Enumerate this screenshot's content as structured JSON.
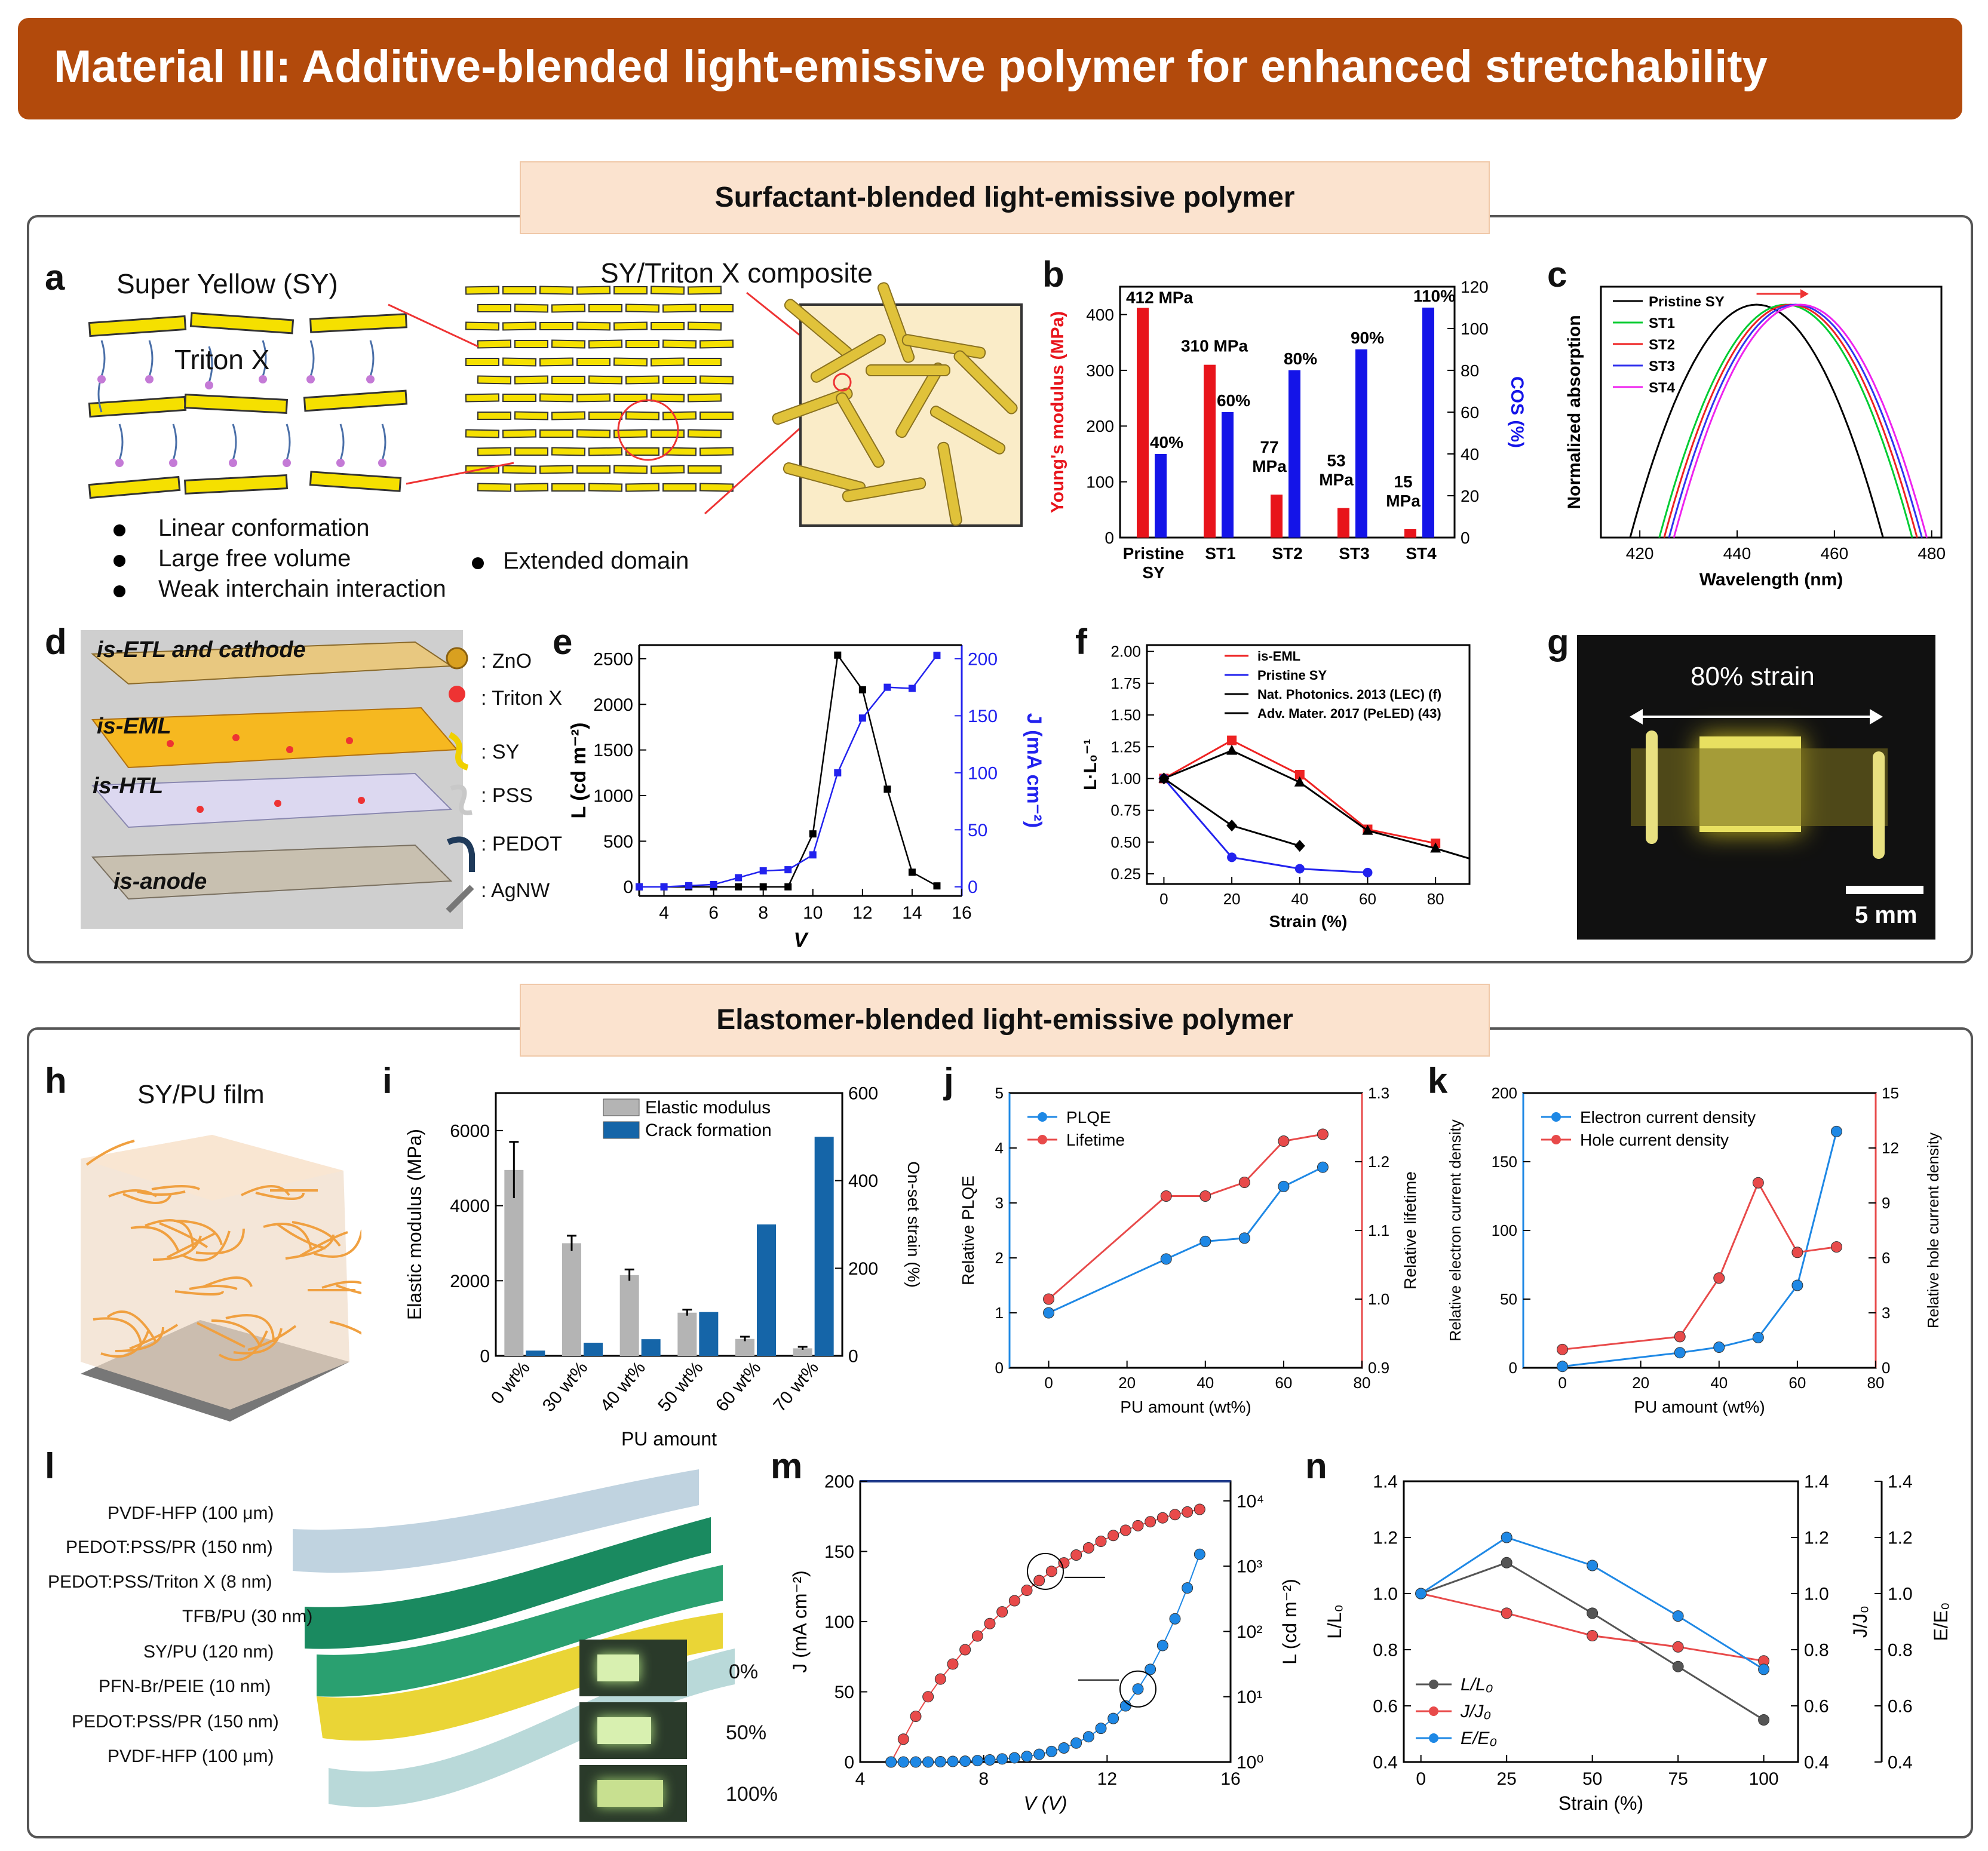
{
  "title": "Material III: Additive-blended light-emissive polymer for enhanced stretchability",
  "sections": {
    "top": "Surfactant-blended light-emissive polymer",
    "bottom": "Elastomer-blended light-emissive polymer"
  },
  "panel_labels": [
    "a",
    "b",
    "c",
    "d",
    "e",
    "f",
    "g",
    "h",
    "i",
    "j",
    "k",
    "l",
    "m",
    "n"
  ],
  "panel_a": {
    "sy_label": "Super Yellow (SY)",
    "triton_label": "Triton X",
    "composite_label": "SY/Triton X composite",
    "bullets": [
      "Linear conformation",
      "Large free volume",
      "Weak interchain interaction"
    ],
    "extended": "Extended domain"
  },
  "panel_d": {
    "layers": [
      "is-ETL and cathode",
      "is-EML",
      "is-HTL",
      "is-anode"
    ],
    "legend": [
      ": ZnO",
      ": Triton X",
      ": SY",
      ": PSS",
      ": PEDOT",
      ": AgNW"
    ]
  },
  "panel_g": {
    "strain": "80% strain",
    "scale": "5 mm"
  },
  "panel_h": {
    "label": "SY/PU film"
  },
  "panel_l": {
    "layers": [
      "PVDF-HFP (100 μm)",
      "PEDOT:PSS/PR (150 nm)",
      "PEDOT:PSS/Triton X (8 nm)",
      "TFB/PU (30 nm)",
      "SY/PU (120 nm)",
      "PFN-Br/PEIE (10 nm)",
      "PEDOT:PSS/PR (150 nm)",
      "PVDF-HFP (100 μm)"
    ],
    "strains": [
      "0%",
      "50%",
      "100%"
    ]
  },
  "chart_data": [
    {
      "panel": "b",
      "type": "bar",
      "categories": [
        "Pristine SY",
        "ST1",
        "ST2",
        "ST3",
        "ST4"
      ],
      "series": [
        {
          "name": "Young's modulus (MPa)",
          "values": [
            412,
            310,
            77,
            53,
            15
          ],
          "color": "#e8141b"
        },
        {
          "name": "COS (%)",
          "values": [
            40,
            60,
            80,
            90,
            110
          ],
          "color": "#1414e8"
        }
      ],
      "bar_labels_left": [
        "412 MPa",
        "310 MPa",
        "77 MPa",
        "53 MPa",
        "15 MPa"
      ],
      "bar_labels_right": [
        "40%",
        "60%",
        "80%",
        "90%",
        "110%"
      ],
      "ylabel": "Young's modulus (MPa)",
      "y2label": "COS (%)",
      "ylim": [
        0,
        450
      ],
      "y2lim": [
        0,
        120
      ],
      "yticks": [
        "0",
        "100",
        "200",
        "300",
        "400"
      ],
      "y2ticks": [
        "0",
        "20",
        "40",
        "60",
        "80",
        "100",
        "120"
      ]
    },
    {
      "panel": "c",
      "type": "line",
      "xlabel": "Wavelength (nm)",
      "ylabel": "Normalized absorption",
      "xlim": [
        412,
        482
      ],
      "xticks": [
        "420",
        "440",
        "460",
        "480"
      ],
      "series": [
        {
          "name": "Pristine SY",
          "peak": 444,
          "color": "#000000"
        },
        {
          "name": "ST1",
          "peak": 450,
          "color": "#00cc33"
        },
        {
          "name": "ST2",
          "peak": 451,
          "color": "#ee2222"
        },
        {
          "name": "ST3",
          "peak": 452,
          "color": "#3333ee"
        },
        {
          "name": "ST4",
          "peak": 453,
          "color": "#ee22ee"
        }
      ]
    },
    {
      "panel": "e",
      "type": "line",
      "xlabel": "V",
      "ylabel": "L (cd m⁻²)",
      "y2label": "J (mA cm⁻²)",
      "xlim": [
        3,
        16
      ],
      "ylim": [
        -100,
        2650
      ],
      "y2lim": [
        -8,
        212
      ],
      "xticks": [
        "4",
        "6",
        "8",
        "10",
        "12",
        "14",
        "16"
      ],
      "yticks": [
        "0",
        "500",
        "1000",
        "1500",
        "2000",
        "2500"
      ],
      "y2ticks": [
        "0",
        "50",
        "100",
        "150",
        "200"
      ],
      "x": [
        3,
        4,
        5,
        6,
        7,
        8,
        9,
        10,
        11,
        12,
        13,
        14,
        15
      ],
      "series": [
        {
          "name": "L",
          "axis": "left",
          "color": "#000000",
          "values": [
            0,
            0,
            0,
            0,
            0,
            0,
            0,
            580,
            2540,
            2160,
            1070,
            160,
            10
          ]
        },
        {
          "name": "J",
          "axis": "right",
          "color": "#2222ee",
          "values": [
            0,
            0,
            1,
            2,
            8,
            14,
            15,
            28,
            100,
            148,
            175,
            174,
            203
          ]
        }
      ]
    },
    {
      "panel": "f",
      "type": "line",
      "xlabel": "Strain (%)",
      "ylabel": "L·L₀⁻¹",
      "xlim": [
        -5,
        90
      ],
      "ylim": [
        0.17,
        2.05
      ],
      "xticks": [
        "0",
        "20",
        "40",
        "60",
        "80"
      ],
      "yticks": [
        "0.25",
        "0.50",
        "0.75",
        "1.00",
        "1.25",
        "1.50",
        "1.75",
        "2.00"
      ],
      "series": [
        {
          "name": "is-EML",
          "color": "#ee2222",
          "x": [
            0,
            20,
            40,
            60,
            80
          ],
          "values": [
            1.0,
            1.3,
            1.03,
            0.6,
            0.49
          ]
        },
        {
          "name": "Pristine SY",
          "color": "#2222ee",
          "x": [
            0,
            20,
            40,
            60
          ],
          "values": [
            1.0,
            0.38,
            0.29,
            0.26
          ]
        },
        {
          "name": "Nat. Photonics. 2013 (LEC) (f)",
          "color": "#000000",
          "x": [
            0,
            20,
            40,
            60,
            80,
            90
          ],
          "values": [
            1.0,
            1.22,
            0.97,
            0.59,
            0.45,
            0.37
          ]
        },
        {
          "name": "Adv. Mater. 2017 (PeLED) (43)",
          "color": "#000000",
          "x": [
            0,
            20,
            40
          ],
          "values": [
            1.0,
            0.63,
            0.47
          ]
        }
      ]
    },
    {
      "panel": "i",
      "type": "bar",
      "categories": [
        "0 wt%",
        "30 wt%",
        "40 wt%",
        "50 wt%",
        "60 wt%",
        "70 wt%"
      ],
      "xlabel": "PU amount",
      "ylabel": "Elastic modulus (MPa)",
      "y2label": "On-set strain (%)",
      "ylim": [
        0,
        7000
      ],
      "y2lim": [
        0,
        600
      ],
      "yticks": [
        "0",
        "2000",
        "4000",
        "6000"
      ],
      "y2ticks": [
        "0",
        "200",
        "400",
        "600"
      ],
      "series": [
        {
          "name": "Elastic modulus",
          "color": "#b4b4b4",
          "values": [
            4950,
            3000,
            2150,
            1150,
            450,
            200
          ],
          "errors": [
            750,
            200,
            150,
            80,
            60,
            40
          ]
        },
        {
          "name": "Crack formation",
          "color": "#1565a8",
          "values": [
            12,
            30,
            38,
            100,
            300,
            500
          ]
        }
      ]
    },
    {
      "panel": "j",
      "type": "line",
      "xlabel": "PU amount (wt%)",
      "ylabel": "Relative PLQE",
      "y2label": "Relative lifetime",
      "xlim": [
        -10,
        80
      ],
      "ylim": [
        0,
        5
      ],
      "y2lim": [
        0.9,
        1.3
      ],
      "xticks": [
        "0",
        "20",
        "40",
        "60",
        "80"
      ],
      "yticks": [
        "0",
        "1",
        "2",
        "3",
        "4",
        "5"
      ],
      "y2ticks": [
        "0.9",
        "1.0",
        "1.1",
        "1.2",
        "1.3"
      ],
      "x": [
        0,
        30,
        40,
        50,
        60,
        70
      ],
      "series": [
        {
          "name": "PLQE",
          "axis": "left",
          "color": "#1e88e5",
          "values": [
            1.0,
            1.98,
            2.3,
            2.36,
            3.3,
            3.65
          ]
        },
        {
          "name": "Lifetime",
          "axis": "right",
          "color": "#e84a4a",
          "values": [
            1.0,
            1.15,
            1.15,
            1.17,
            1.23,
            1.24
          ]
        }
      ]
    },
    {
      "panel": "k",
      "type": "line",
      "xlabel": "PU amount (wt%)",
      "ylabel": "Relative electron current density",
      "y2label": "Relative hole current density",
      "xlim": [
        -10,
        80
      ],
      "ylim": [
        0,
        200
      ],
      "y2lim": [
        0,
        15
      ],
      "xticks": [
        "0",
        "20",
        "40",
        "60",
        "80"
      ],
      "yticks": [
        "0",
        "50",
        "100",
        "150",
        "200"
      ],
      "y2ticks": [
        "0",
        "3",
        "6",
        "9",
        "12",
        "15"
      ],
      "x": [
        0,
        30,
        40,
        50,
        60,
        70
      ],
      "series": [
        {
          "name": "Electron current density",
          "axis": "left",
          "color": "#1e88e5",
          "values": [
            1,
            11,
            15,
            22,
            60,
            172
          ]
        },
        {
          "name": "Hole current density",
          "axis": "right",
          "color": "#e84a4a",
          "values": [
            1.0,
            1.7,
            4.9,
            10.1,
            6.3,
            6.6
          ]
        }
      ]
    },
    {
      "panel": "m",
      "type": "scatter",
      "xlabel": "V (V)",
      "ylabel": "J (mA cm⁻²)",
      "y2label": "L (cd m⁻²)",
      "xlim": [
        4,
        16
      ],
      "ylim": [
        0,
        200
      ],
      "y2lim_log": [
        0,
        4.3
      ],
      "xticks": [
        "4",
        "8",
        "12",
        "16"
      ],
      "yticks": [
        "0",
        "50",
        "100",
        "150",
        "200"
      ],
      "y2ticks": [
        "10⁰",
        "10¹",
        "10²",
        "10³",
        "10⁴"
      ],
      "series": [
        {
          "name": "L",
          "axis": "right",
          "color": "#e84a4a",
          "x": [
            5.0,
            5.4,
            5.8,
            6.2,
            6.6,
            7.0,
            7.4,
            7.8,
            8.2,
            8.6,
            9.0,
            9.4,
            9.8,
            10.2,
            10.6,
            11.0,
            11.4,
            11.8,
            12.2,
            12.6,
            13.0,
            13.4,
            13.8,
            14.2,
            14.6,
            15.0
          ],
          "log_values": [
            0.0,
            0.35,
            0.7,
            1.0,
            1.27,
            1.5,
            1.72,
            1.93,
            2.12,
            2.3,
            2.47,
            2.63,
            2.78,
            2.92,
            3.05,
            3.17,
            3.28,
            3.38,
            3.47,
            3.55,
            3.62,
            3.68,
            3.74,
            3.79,
            3.83,
            3.87
          ]
        },
        {
          "name": "J",
          "axis": "left",
          "color": "#1e88e5",
          "x": [
            5.0,
            5.4,
            5.8,
            6.2,
            6.6,
            7.0,
            7.4,
            7.8,
            8.2,
            8.6,
            9.0,
            9.4,
            9.8,
            10.2,
            10.6,
            11.0,
            11.4,
            11.8,
            12.2,
            12.6,
            13.0,
            13.4,
            13.8,
            14.2,
            14.6,
            15.0
          ],
          "values": [
            0,
            0,
            0,
            0,
            0.2,
            0.4,
            0.6,
            1,
            1.5,
            2.2,
            3,
            4,
            5.5,
            7.5,
            10,
            13.5,
            18,
            24,
            31,
            40,
            52,
            66,
            83,
            102,
            124,
            148
          ]
        }
      ]
    },
    {
      "panel": "n",
      "type": "line",
      "xlabel": "Strain (%)",
      "ylabel": "L/L₀",
      "y2label": "J/J₀",
      "y3label": "E/E₀",
      "xlim": [
        -5,
        110
      ],
      "ylim": [
        0.4,
        1.4
      ],
      "xticks": [
        "0",
        "25",
        "50",
        "75",
        "100"
      ],
      "yticks": [
        "0.4",
        "0.6",
        "0.8",
        "1.0",
        "1.2",
        "1.4"
      ],
      "x": [
        0,
        25,
        50,
        75,
        100
      ],
      "series": [
        {
          "name": "L/L₀",
          "color": "#555555",
          "values": [
            1.0,
            1.11,
            0.93,
            0.74,
            0.55
          ]
        },
        {
          "name": "J/J₀",
          "color": "#e84a4a",
          "values": [
            1.0,
            0.93,
            0.85,
            0.81,
            0.76
          ]
        },
        {
          "name": "E/E₀",
          "color": "#1e88e5",
          "values": [
            1.0,
            1.2,
            1.1,
            0.92,
            0.73
          ]
        }
      ]
    }
  ]
}
